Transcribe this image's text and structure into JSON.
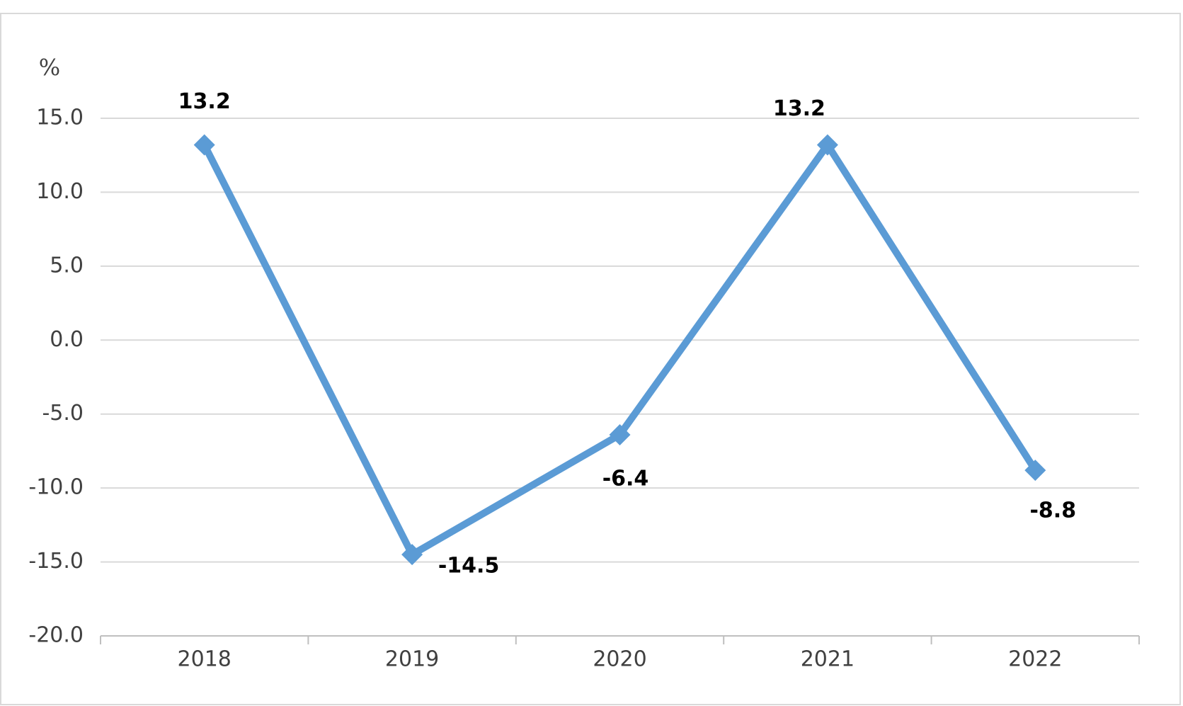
{
  "chart_data": {
    "type": "line",
    "y_axis_label": "%",
    "categories": [
      "2018",
      "2019",
      "2020",
      "2021",
      "2022"
    ],
    "values": [
      13.2,
      -14.5,
      -6.4,
      13.2,
      -8.8
    ],
    "color": "#5b9bd5",
    "ylim": [
      -20,
      15
    ],
    "yticks": [
      {
        "value": -20,
        "label": "-20.0"
      },
      {
        "value": -15,
        "label": "-15.0"
      },
      {
        "value": -10,
        "label": "-10.0"
      },
      {
        "value": -5,
        "label": "-5.0"
      },
      {
        "value": 0,
        "label": "0.0"
      },
      {
        "value": 5,
        "label": "5.0"
      },
      {
        "value": 10,
        "label": "10.0"
      },
      {
        "value": 15,
        "label": "15.0"
      }
    ],
    "grid": true
  }
}
